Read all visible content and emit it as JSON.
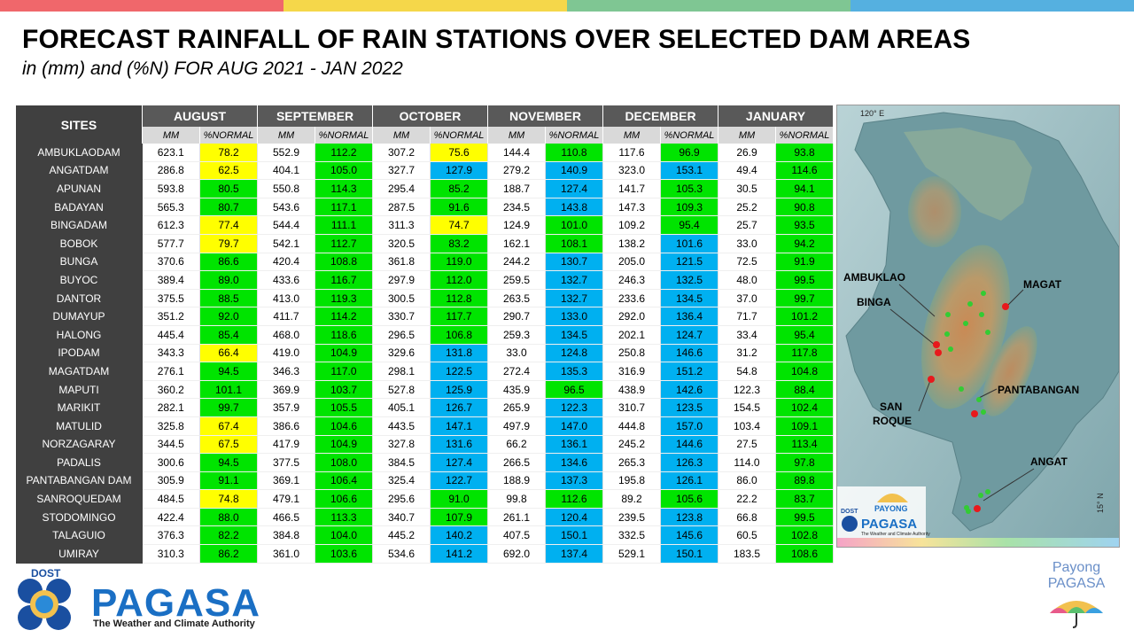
{
  "top_bar_colors": [
    "#f0676b",
    "#f5d74a",
    "#7fc693",
    "#55b0e0"
  ],
  "cell_colors": {
    "yellow": "#ffff00",
    "green": "#00e400",
    "blue": "#00b0f0"
  },
  "title": "FORECAST RAINFALL OF RAIN STATIONS OVER SELECTED DAM AREAS",
  "subtitle": "in (mm) and (%N) FOR AUG 2021 - JAN 2022",
  "table": {
    "sites_header": "SITES",
    "months": [
      "AUGUST",
      "SEPTEMBER",
      "OCTOBER",
      "NOVEMBER",
      "DECEMBER",
      "JANUARY"
    ],
    "sub_headers": [
      "MM",
      "%NORMAL"
    ],
    "rows": [
      {
        "site": "AMBUKLAODAM",
        "values": [
          "623.1",
          "78.2",
          "552.9",
          "112.2",
          "307.2",
          "75.6",
          "144.4",
          "110.8",
          "117.6",
          "96.9",
          "26.9",
          "93.8"
        ],
        "colors": [
          "y",
          "g",
          "y",
          "g",
          "g",
          "g"
        ]
      },
      {
        "site": "ANGATDAM",
        "values": [
          "286.8",
          "62.5",
          "404.1",
          "105.0",
          "327.7",
          "127.9",
          "279.2",
          "140.9",
          "323.0",
          "153.1",
          "49.4",
          "114.6"
        ],
        "colors": [
          "y",
          "g",
          "b",
          "b",
          "b",
          "g"
        ]
      },
      {
        "site": "APUNAN",
        "values": [
          "593.8",
          "80.5",
          "550.8",
          "114.3",
          "295.4",
          "85.2",
          "188.7",
          "127.4",
          "141.7",
          "105.3",
          "30.5",
          "94.1"
        ],
        "colors": [
          "g",
          "g",
          "g",
          "b",
          "g",
          "g"
        ]
      },
      {
        "site": "BADAYAN",
        "values": [
          "565.3",
          "80.7",
          "543.6",
          "117.1",
          "287.5",
          "91.6",
          "234.5",
          "143.8",
          "147.3",
          "109.3",
          "25.2",
          "90.8"
        ],
        "colors": [
          "g",
          "g",
          "g",
          "b",
          "g",
          "g"
        ]
      },
      {
        "site": "BINGADAM",
        "values": [
          "612.3",
          "77.4",
          "544.4",
          "111.1",
          "311.3",
          "74.7",
          "124.9",
          "101.0",
          "109.2",
          "95.4",
          "25.7",
          "93.5"
        ],
        "colors": [
          "y",
          "g",
          "y",
          "g",
          "g",
          "g"
        ]
      },
      {
        "site": "BOBOK",
        "values": [
          "577.7",
          "79.7",
          "542.1",
          "112.7",
          "320.5",
          "83.2",
          "162.1",
          "108.1",
          "138.2",
          "101.6",
          "33.0",
          "94.2"
        ],
        "colors": [
          "y",
          "g",
          "g",
          "g",
          "b",
          "g"
        ]
      },
      {
        "site": "BUNGA",
        "values": [
          "370.6",
          "86.6",
          "420.4",
          "108.8",
          "361.8",
          "119.0",
          "244.2",
          "130.7",
          "205.0",
          "121.5",
          "72.5",
          "91.9"
        ],
        "colors": [
          "g",
          "g",
          "g",
          "b",
          "b",
          "g"
        ]
      },
      {
        "site": "BUYOC",
        "values": [
          "389.4",
          "89.0",
          "433.6",
          "116.7",
          "297.9",
          "112.0",
          "259.5",
          "132.7",
          "246.3",
          "132.5",
          "48.0",
          "99.5"
        ],
        "colors": [
          "g",
          "g",
          "g",
          "b",
          "b",
          "g"
        ]
      },
      {
        "site": "DANTOR",
        "values": [
          "375.5",
          "88.5",
          "413.0",
          "119.3",
          "300.5",
          "112.8",
          "263.5",
          "132.7",
          "233.6",
          "134.5",
          "37.0",
          "99.7"
        ],
        "colors": [
          "g",
          "g",
          "g",
          "b",
          "b",
          "g"
        ]
      },
      {
        "site": "DUMAYUP",
        "values": [
          "351.2",
          "92.0",
          "411.7",
          "114.2",
          "330.7",
          "117.7",
          "290.7",
          "133.0",
          "292.0",
          "136.4",
          "71.7",
          "101.2"
        ],
        "colors": [
          "g",
          "g",
          "g",
          "b",
          "b",
          "g"
        ]
      },
      {
        "site": "HALONG",
        "values": [
          "445.4",
          "85.4",
          "468.0",
          "118.6",
          "296.5",
          "106.8",
          "259.3",
          "134.5",
          "202.1",
          "124.7",
          "33.4",
          "95.4"
        ],
        "colors": [
          "g",
          "g",
          "g",
          "b",
          "b",
          "g"
        ]
      },
      {
        "site": "IPODAM",
        "values": [
          "343.3",
          "66.4",
          "419.0",
          "104.9",
          "329.6",
          "131.8",
          "33.0",
          "124.8",
          "250.8",
          "146.6",
          "31.2",
          "117.8"
        ],
        "colors": [
          "y",
          "g",
          "b",
          "b",
          "b",
          "g"
        ]
      },
      {
        "site": "MAGATDAM",
        "values": [
          "276.1",
          "94.5",
          "346.3",
          "117.0",
          "298.1",
          "122.5",
          "272.4",
          "135.3",
          "316.9",
          "151.2",
          "54.8",
          "104.8"
        ],
        "colors": [
          "g",
          "g",
          "b",
          "b",
          "b",
          "g"
        ]
      },
      {
        "site": "MAPUTI",
        "values": [
          "360.2",
          "101.1",
          "369.9",
          "103.7",
          "527.8",
          "125.9",
          "435.9",
          "96.5",
          "438.9",
          "142.6",
          "122.3",
          "88.4"
        ],
        "colors": [
          "g",
          "g",
          "b",
          "g",
          "b",
          "g"
        ]
      },
      {
        "site": "MARIKIT",
        "values": [
          "282.1",
          "99.7",
          "357.9",
          "105.5",
          "405.1",
          "126.7",
          "265.9",
          "122.3",
          "310.7",
          "123.5",
          "154.5",
          "102.4"
        ],
        "colors": [
          "g",
          "g",
          "b",
          "b",
          "b",
          "g"
        ]
      },
      {
        "site": "MATULID",
        "values": [
          "325.8",
          "67.4",
          "386.6",
          "104.6",
          "443.5",
          "147.1",
          "497.9",
          "147.0",
          "444.8",
          "157.0",
          "103.4",
          "109.1"
        ],
        "colors": [
          "y",
          "g",
          "b",
          "b",
          "b",
          "g"
        ]
      },
      {
        "site": "NORZAGARAY",
        "values": [
          "344.5",
          "67.5",
          "417.9",
          "104.9",
          "327.8",
          "131.6",
          "66.2",
          "136.1",
          "245.2",
          "144.6",
          "27.5",
          "113.4"
        ],
        "colors": [
          "y",
          "g",
          "b",
          "b",
          "b",
          "g"
        ]
      },
      {
        "site": "PADALIS",
        "values": [
          "300.6",
          "94.5",
          "377.5",
          "108.0",
          "384.5",
          "127.4",
          "266.5",
          "134.6",
          "265.3",
          "126.3",
          "114.0",
          "97.8"
        ],
        "colors": [
          "g",
          "g",
          "b",
          "b",
          "b",
          "g"
        ]
      },
      {
        "site": "PANTABANGAN DAM",
        "values": [
          "305.9",
          "91.1",
          "369.1",
          "106.4",
          "325.4",
          "122.7",
          "188.9",
          "137.3",
          "195.8",
          "126.1",
          "86.0",
          "89.8"
        ],
        "colors": [
          "g",
          "g",
          "b",
          "b",
          "b",
          "g"
        ]
      },
      {
        "site": "SANROQUEDAM",
        "values": [
          "484.5",
          "74.8",
          "479.1",
          "106.6",
          "295.6",
          "91.0",
          "99.8",
          "112.6",
          "89.2",
          "105.6",
          "22.2",
          "83.7"
        ],
        "colors": [
          "y",
          "g",
          "g",
          "g",
          "g",
          "g"
        ]
      },
      {
        "site": "STODOMINGO",
        "values": [
          "422.4",
          "88.0",
          "466.5",
          "113.3",
          "340.7",
          "107.9",
          "261.1",
          "120.4",
          "239.5",
          "123.8",
          "66.8",
          "99.5"
        ],
        "colors": [
          "g",
          "g",
          "g",
          "b",
          "b",
          "g"
        ]
      },
      {
        "site": "TALAGUIO",
        "values": [
          "376.3",
          "82.2",
          "384.8",
          "104.0",
          "445.2",
          "140.2",
          "407.5",
          "150.1",
          "332.5",
          "145.6",
          "60.5",
          "102.8"
        ],
        "colors": [
          "g",
          "g",
          "b",
          "b",
          "b",
          "g"
        ]
      },
      {
        "site": "UMIRAY",
        "values": [
          "310.3",
          "86.2",
          "361.0",
          "103.6",
          "534.6",
          "141.2",
          "692.0",
          "137.4",
          "529.1",
          "150.1",
          "183.5",
          "108.6"
        ],
        "colors": [
          "g",
          "g",
          "b",
          "b",
          "b",
          "g"
        ]
      }
    ]
  },
  "map": {
    "lon_label": "120° E",
    "lat_label": "15° N",
    "labels": [
      "AMBUKLAO",
      "BINGA",
      "MAGAT",
      "PANTABANGAN",
      "SAN ROQUE",
      "ANGAT"
    ],
    "marker_colors": {
      "dam": "#e8191c",
      "station": "#33cc33"
    },
    "logo": {
      "dost": "DOST",
      "brand": "PAYONG",
      "name": "PAGASA",
      "tagline": "The Weather and Climate Authority"
    }
  },
  "footer": {
    "dost": "DOST",
    "pagasa": "PAGASA",
    "tagline": "The Weather and Climate Authority",
    "payong_line1": "Payong",
    "payong_line2": "PAGASA"
  }
}
